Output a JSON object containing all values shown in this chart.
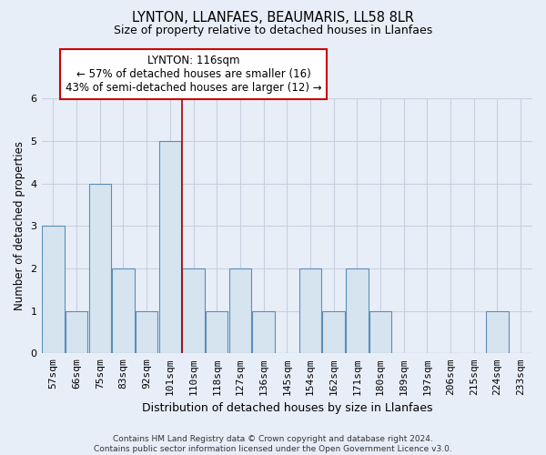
{
  "title_line1": "LYNTON, LLANFAES, BEAUMARIS, LL58 8LR",
  "title_line2": "Size of property relative to detached houses in Llanfaes",
  "xlabel": "Distribution of detached houses by size in Llanfaes",
  "ylabel": "Number of detached properties",
  "categories": [
    "57sqm",
    "66sqm",
    "75sqm",
    "83sqm",
    "92sqm",
    "101sqm",
    "110sqm",
    "118sqm",
    "127sqm",
    "136sqm",
    "145sqm",
    "154sqm",
    "162sqm",
    "171sqm",
    "180sqm",
    "189sqm",
    "197sqm",
    "206sqm",
    "215sqm",
    "224sqm",
    "233sqm"
  ],
  "values": [
    3,
    1,
    4,
    2,
    1,
    5,
    2,
    1,
    2,
    1,
    0,
    2,
    1,
    2,
    1,
    0,
    0,
    0,
    0,
    1,
    0
  ],
  "bar_color": "#d6e4f0",
  "bar_edge_color": "#5b8db8",
  "highlight_index": 5,
  "annotation_text": "LYNTON: 116sqm\n← 57% of detached houses are smaller (16)\n43% of semi-detached houses are larger (12) →",
  "annotation_box_color": "#ffffff",
  "annotation_box_edge": "#cc0000",
  "vline_color": "#aa0000",
  "ylim": [
    0,
    6
  ],
  "yticks": [
    0,
    1,
    2,
    3,
    4,
    5,
    6
  ],
  "background_color": "#e8eef8",
  "grid_color": "#c8d0e0",
  "footer_line1": "Contains HM Land Registry data © Crown copyright and database right 2024.",
  "footer_line2": "Contains public sector information licensed under the Open Government Licence v3.0."
}
